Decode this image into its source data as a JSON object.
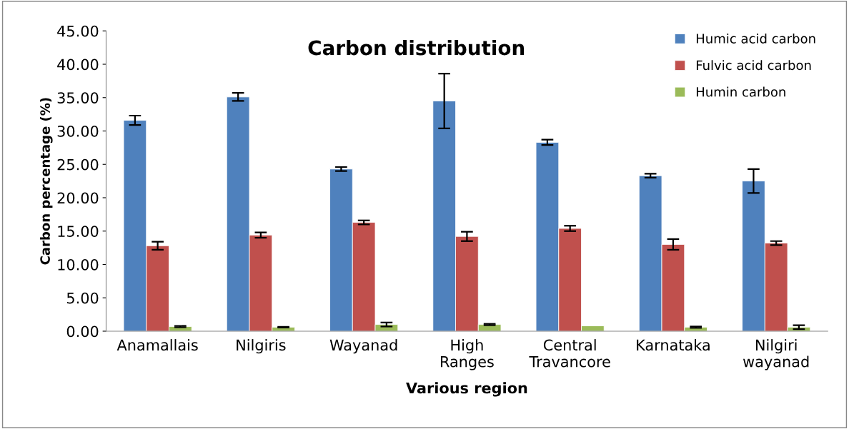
{
  "chart_data": {
    "type": "bar",
    "title": "Carbon distribution",
    "xlabel": "Various region",
    "ylabel": "Carbon percentage (%)",
    "categories": [
      "Anamallais",
      "Nilgiris",
      "Wayanad",
      "High\nRanges",
      "Central\nTravancore",
      "Karnataka",
      "Nilgiri\nwayanad"
    ],
    "series": [
      {
        "name": "Humic acid carbon",
        "color": "#4f81bd",
        "values": [
          31.6,
          35.1,
          24.3,
          34.5,
          28.3,
          23.3,
          22.5
        ],
        "errors": [
          0.7,
          0.6,
          0.3,
          4.1,
          0.4,
          0.3,
          1.8
        ]
      },
      {
        "name": "Fulvic acid carbon",
        "color": "#c0504d",
        "values": [
          12.8,
          14.4,
          16.3,
          14.2,
          15.4,
          13.0,
          13.2
        ],
        "errors": [
          0.6,
          0.4,
          0.3,
          0.7,
          0.4,
          0.8,
          0.3
        ]
      },
      {
        "name": "Humin carbon",
        "color": "#9bbb59",
        "values": [
          0.7,
          0.6,
          1.0,
          1.0,
          0.8,
          0.6,
          0.6
        ],
        "errors": [
          0.1,
          0.05,
          0.3,
          0.1,
          null,
          0.1,
          0.3
        ]
      }
    ],
    "ylim": [
      0,
      45
    ],
    "yticks": [
      {
        "value": 0,
        "label": "0.00"
      },
      {
        "value": 5,
        "label": "5.00"
      },
      {
        "value": 10,
        "label": "10.00"
      },
      {
        "value": 15,
        "label": "15.00"
      },
      {
        "value": 20,
        "label": "20.00"
      },
      {
        "value": 25,
        "label": "25.00"
      },
      {
        "value": 30,
        "label": "30.00"
      },
      {
        "value": 35,
        "label": "35.00"
      },
      {
        "value": 40,
        "label": "40.00"
      },
      {
        "value": 45,
        "label": "45.00"
      }
    ],
    "grid": false,
    "legend": "top right"
  }
}
